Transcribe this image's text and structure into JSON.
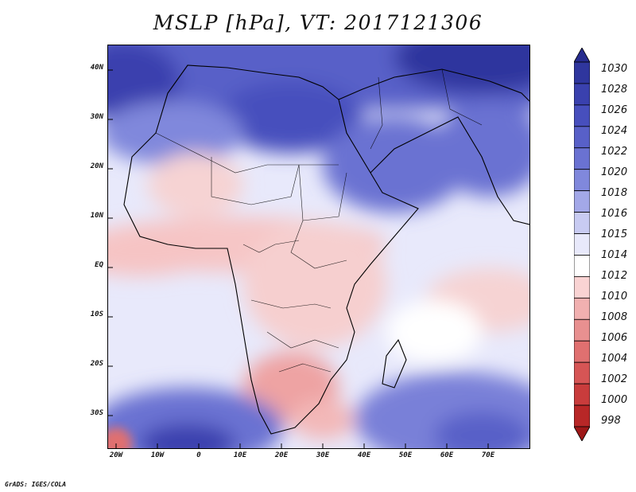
{
  "title": "MSLP [hPa], VT: 2017121306",
  "credit": "GrADS: IGES/COLA",
  "lat_labels": [
    "40N",
    "30N",
    "20N",
    "10N",
    "EQ",
    "10S",
    "20S",
    "30S"
  ],
  "lon_labels": [
    "20W",
    "10W",
    "0",
    "10E",
    "20E",
    "30E",
    "40E",
    "50E",
    "60E",
    "70E"
  ],
  "colorbar": {
    "levels": [
      "1030",
      "1028",
      "1026",
      "1024",
      "1022",
      "1020",
      "1018",
      "1016",
      "1015",
      "1014",
      "1012",
      "1010",
      "1008",
      "1006",
      "1004",
      "1002",
      "1000",
      "998"
    ],
    "colors": [
      "#262b8e",
      "#2f369e",
      "#3a41ae",
      "#474fbd",
      "#5860c8",
      "#6a72d2",
      "#8088dc",
      "#a3a8e8",
      "#c8cbf2",
      "#e8e9fb",
      "#ffffff",
      "#f9d3d3",
      "#f1b0b0",
      "#e89090",
      "#e07070",
      "#d65555",
      "#c93c3c",
      "#b82727",
      "#9e1818"
    ]
  },
  "map": {
    "ocean_color": "#e9eafb",
    "high_color": "#3a41ae",
    "low_color": "#f3bcbc"
  }
}
